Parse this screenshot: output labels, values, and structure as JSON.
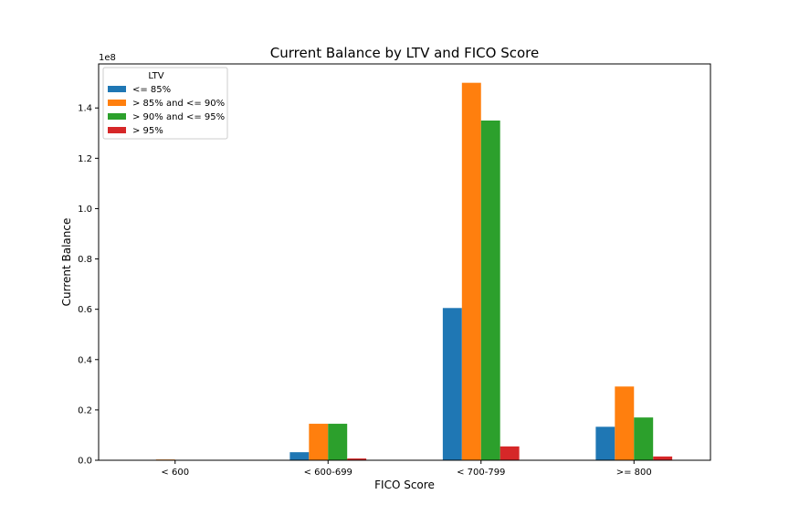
{
  "chart_data": {
    "type": "bar",
    "title": "Current Balance by LTV and FICO Score",
    "xlabel": "FICO Score",
    "ylabel": "Current Balance",
    "y_scale_note": "1e8",
    "categories": [
      "< 600",
      "< 600-699",
      "< 700-799",
      ">= 800"
    ],
    "yticks": [
      0.0,
      0.2,
      0.4,
      0.6,
      0.8,
      1.0,
      1.2,
      1.4
    ],
    "ylim": [
      0,
      1.575
    ],
    "legend": {
      "title": "LTV",
      "placement": "upper left"
    },
    "series": [
      {
        "name": "<= 85%",
        "color": "#1f77b4",
        "values": [
          0,
          0.032,
          0.605,
          0.133
        ]
      },
      {
        "name": "> 85% and <= 90%",
        "color": "#ff7f0e",
        "values": [
          0.003,
          0.145,
          1.5,
          0.293
        ]
      },
      {
        "name": "> 90% and <= 95%",
        "color": "#2ca02c",
        "values": [
          0,
          0.145,
          1.35,
          0.17
        ]
      },
      {
        "name": "> 95%",
        "color": "#d62728",
        "values": [
          0,
          0.007,
          0.055,
          0.015
        ]
      }
    ]
  }
}
